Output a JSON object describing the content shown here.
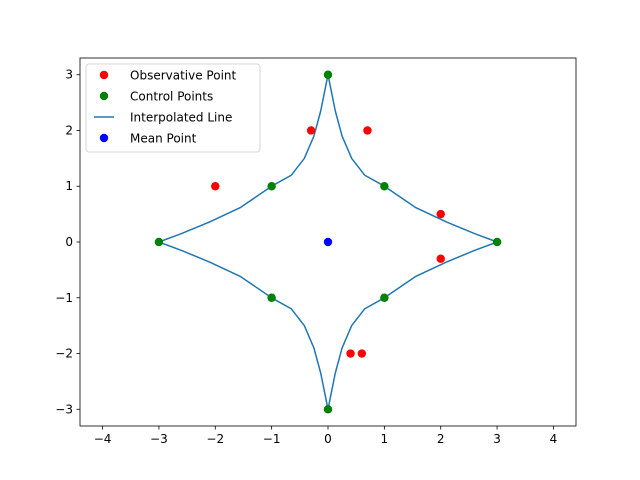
{
  "chart_data": {
    "type": "scatter",
    "title": "",
    "xlabel": "",
    "ylabel": "",
    "xlim": [
      -4.4,
      4.4
    ],
    "ylim": [
      -3.3,
      3.3
    ],
    "xticks": [
      -4,
      -3,
      -2,
      -1,
      0,
      1,
      2,
      3,
      4
    ],
    "yticks": [
      -3,
      -2,
      -1,
      0,
      1,
      2,
      3
    ],
    "grid": false,
    "legend_position": "top-left",
    "series": [
      {
        "name": "Observative Point",
        "kind": "scatter",
        "color": "#ff0000",
        "x": [
          -2,
          -0.3,
          0.7,
          2,
          2,
          0.4,
          0.6
        ],
        "y": [
          1,
          2,
          2,
          0.5,
          -0.3,
          -2,
          -2
        ]
      },
      {
        "name": "Control Points",
        "kind": "scatter",
        "color": "#008000",
        "x": [
          0,
          1,
          3,
          1,
          0,
          -1,
          -3,
          -1
        ],
        "y": [
          3,
          1,
          0,
          -1,
          -3,
          -1,
          0,
          1
        ]
      },
      {
        "name": "Interpolated Line",
        "kind": "line",
        "color": "#1f77b4",
        "x": [
          0,
          0.05,
          0.13,
          0.25,
          0.42,
          0.65,
          1,
          1.55,
          2.1,
          2.6,
          3,
          2.6,
          2.1,
          1.55,
          1,
          0.65,
          0.42,
          0.25,
          0.13,
          0.05,
          0,
          -0.05,
          -0.13,
          -0.25,
          -0.42,
          -0.65,
          -1,
          -1.55,
          -2.1,
          -2.6,
          -3,
          -2.6,
          -2.1,
          -1.55,
          -1,
          -0.65,
          -0.42,
          -0.25,
          -0.13,
          -0.05,
          0
        ],
        "y": [
          3,
          2.75,
          2.35,
          1.9,
          1.5,
          1.2,
          1,
          0.62,
          0.36,
          0.15,
          0,
          -0.15,
          -0.36,
          -0.62,
          -1,
          -1.2,
          -1.5,
          -1.9,
          -2.35,
          -2.75,
          -3,
          -2.75,
          -2.35,
          -1.9,
          -1.5,
          -1.2,
          -1,
          -0.62,
          -0.36,
          -0.15,
          0,
          0.15,
          0.36,
          0.62,
          1,
          1.2,
          1.5,
          1.9,
          2.35,
          2.75,
          3
        ]
      },
      {
        "name": "Mean Point",
        "kind": "scatter",
        "color": "#0000ff",
        "x": [
          0
        ],
        "y": [
          0
        ]
      }
    ]
  }
}
